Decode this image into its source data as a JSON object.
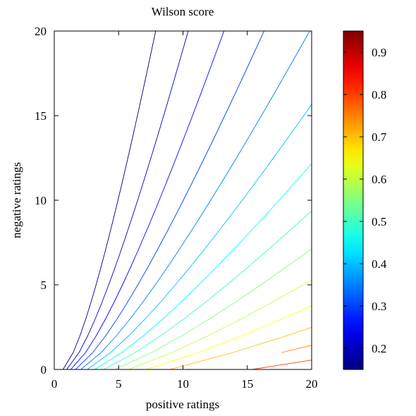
{
  "chart_data": {
    "type": "contour",
    "title": "Wilson score",
    "xlabel": "positive ratings",
    "ylabel": "negative ratings",
    "xlim": [
      0,
      20
    ],
    "ylim": [
      0,
      20
    ],
    "x_ticks": [
      0,
      5,
      10,
      15,
      20
    ],
    "y_ticks": [
      0,
      5,
      10,
      15,
      20
    ],
    "x_tick_labels": [
      "0",
      "5",
      "10",
      "15",
      "20"
    ],
    "y_tick_labels": [
      "0",
      "5",
      "10",
      "15",
      "20"
    ],
    "grid": false,
    "z_function": "Wilson score lower bound (95% confidence) of positive/(positive+negative)",
    "contour_levels": [
      0.15,
      0.2,
      0.25,
      0.3,
      0.35,
      0.4,
      0.45,
      0.5,
      0.55,
      0.6,
      0.65,
      0.7,
      0.75,
      0.8,
      0.85,
      0.9
    ],
    "colorbar": {
      "range": [
        0.15,
        0.95
      ],
      "ticks": [
        0.2,
        0.3,
        0.4,
        0.5,
        0.6,
        0.7,
        0.8,
        0.9
      ],
      "tick_labels": [
        "0.2",
        "0.3",
        "0.4",
        "0.5",
        "0.6",
        "0.7",
        "0.8",
        "0.9"
      ],
      "colormap": "jet",
      "colormap_stops": [
        "#000080",
        "#0000ff",
        "#00ffff",
        "#ffff00",
        "#ff0000",
        "#800000"
      ]
    }
  }
}
